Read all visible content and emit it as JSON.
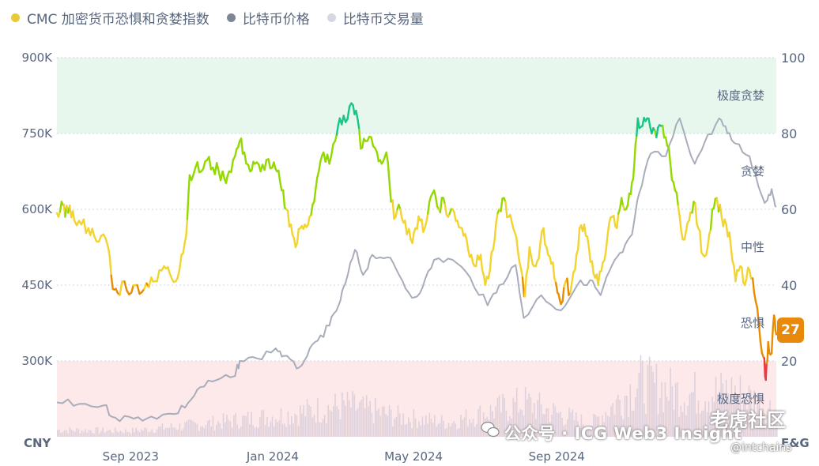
{
  "legend": {
    "fg": {
      "label": "CMC 加密货币恐惧和贪婪指数",
      "color": "#e8c93a"
    },
    "price": {
      "label": "比特币价格",
      "color": "#7e8696"
    },
    "volume": {
      "label": "比特币交易量",
      "color": "#d5d8e3"
    }
  },
  "axis": {
    "left_unit": "CNY",
    "right_unit": "F&G",
    "left_ticks": [
      "900K",
      "750K",
      "600K",
      "450K",
      "300K"
    ],
    "right_ticks": [
      "100",
      "80",
      "60",
      "40",
      "20"
    ],
    "x_ticks": [
      "Sep 2023",
      "Jan 2024",
      "May 2024",
      "Sep 2024"
    ]
  },
  "zones": {
    "extreme_greed": "极度贪婪",
    "greed": "贪婪",
    "neutral": "中性",
    "fear": "恐惧",
    "extreme_fear": "极度恐惧"
  },
  "current_value": "27",
  "watermark": {
    "main": "公众号 · ICG Web3 Insight",
    "site": "老虎社区",
    "sub": "@intchains"
  },
  "colors": {
    "extreme_greed_zone": "#e8f7ee",
    "extreme_fear_zone": "#fde9ea",
    "extreme_greed_line": "#16c784",
    "greed_line": "#93d900",
    "neutral_line": "#f3d42f",
    "fear_line": "#ea8c00",
    "extreme_fear_line": "#ea3943",
    "price_line": "#a8adbb",
    "volume_bars": "#d8cdd8"
  },
  "chart_data": {
    "type": "line",
    "title": "",
    "x_range": [
      "2023-07-01",
      "2025-03-10"
    ],
    "y_left_range": [
      150000,
      900000
    ],
    "y_right_range": [
      0,
      100
    ],
    "series": [
      {
        "name": "CMC 加密货币恐惧和贪婪指数",
        "axis": "right",
        "points": [
          [
            "2023-07-01",
            59
          ],
          [
            "2023-07-05",
            62
          ],
          [
            "2023-07-08",
            58
          ],
          [
            "2023-07-12",
            61
          ],
          [
            "2023-07-16",
            57
          ],
          [
            "2023-07-22",
            56
          ],
          [
            "2023-07-28",
            55
          ],
          [
            "2023-08-02",
            53
          ],
          [
            "2023-08-08",
            53
          ],
          [
            "2023-08-14",
            50
          ],
          [
            "2023-08-18",
            39
          ],
          [
            "2023-08-22",
            38
          ],
          [
            "2023-08-28",
            41
          ],
          [
            "2023-09-03",
            38
          ],
          [
            "2023-09-08",
            40
          ],
          [
            "2023-09-14",
            39
          ],
          [
            "2023-09-20",
            42
          ],
          [
            "2023-09-25",
            41
          ],
          [
            "2023-10-01",
            45
          ],
          [
            "2023-10-06",
            43
          ],
          [
            "2023-10-11",
            41
          ],
          [
            "2023-10-16",
            48
          ],
          [
            "2023-10-20",
            53
          ],
          [
            "2023-10-23",
            69
          ],
          [
            "2023-10-28",
            71
          ],
          [
            "2023-11-02",
            70
          ],
          [
            "2023-11-07",
            73
          ],
          [
            "2023-11-12",
            71
          ],
          [
            "2023-11-17",
            70
          ],
          [
            "2023-11-22",
            68
          ],
          [
            "2023-11-26",
            70
          ],
          [
            "2023-12-01",
            74
          ],
          [
            "2023-12-05",
            78
          ],
          [
            "2023-12-09",
            75
          ],
          [
            "2023-12-14",
            70
          ],
          [
            "2023-12-18",
            72
          ],
          [
            "2023-12-23",
            70
          ],
          [
            "2023-12-28",
            73
          ],
          [
            "2024-01-02",
            71
          ],
          [
            "2024-01-06",
            70
          ],
          [
            "2024-01-10",
            65
          ],
          [
            "2024-01-14",
            60
          ],
          [
            "2024-01-18",
            56
          ],
          [
            "2024-01-22",
            50
          ],
          [
            "2024-01-26",
            55
          ],
          [
            "2024-01-30",
            56
          ],
          [
            "2024-02-03",
            58
          ],
          [
            "2024-02-07",
            62
          ],
          [
            "2024-02-11",
            70
          ],
          [
            "2024-02-15",
            75
          ],
          [
            "2024-02-20",
            72
          ],
          [
            "2024-02-25",
            78
          ],
          [
            "2024-02-29",
            84
          ],
          [
            "2024-03-05",
            83
          ],
          [
            "2024-03-10",
            88
          ],
          [
            "2024-03-14",
            86
          ],
          [
            "2024-03-18",
            76
          ],
          [
            "2024-03-22",
            78
          ],
          [
            "2024-03-27",
            79
          ],
          [
            "2024-04-01",
            75
          ],
          [
            "2024-04-05",
            72
          ],
          [
            "2024-04-09",
            75
          ],
          [
            "2024-04-13",
            62
          ],
          [
            "2024-04-17",
            58
          ],
          [
            "2024-04-21",
            60
          ],
          [
            "2024-04-25",
            57
          ],
          [
            "2024-04-30",
            52
          ],
          [
            "2024-05-04",
            55
          ],
          [
            "2024-05-08",
            57
          ],
          [
            "2024-05-12",
            55
          ],
          [
            "2024-05-16",
            62
          ],
          [
            "2024-05-20",
            65
          ],
          [
            "2024-05-24",
            60
          ],
          [
            "2024-05-28",
            63
          ],
          [
            "2024-06-01",
            58
          ],
          [
            "2024-06-05",
            60
          ],
          [
            "2024-06-09",
            57
          ],
          [
            "2024-06-13",
            55
          ],
          [
            "2024-06-17",
            52
          ],
          [
            "2024-06-21",
            48
          ],
          [
            "2024-06-25",
            45
          ],
          [
            "2024-06-29",
            48
          ],
          [
            "2024-07-03",
            40
          ],
          [
            "2024-07-07",
            44
          ],
          [
            "2024-07-11",
            52
          ],
          [
            "2024-07-15",
            60
          ],
          [
            "2024-07-19",
            63
          ],
          [
            "2024-07-23",
            58
          ],
          [
            "2024-07-27",
            55
          ],
          [
            "2024-07-31",
            49
          ],
          [
            "2024-08-04",
            42
          ],
          [
            "2024-08-06",
            37
          ],
          [
            "2024-08-10",
            50
          ],
          [
            "2024-08-14",
            45
          ],
          [
            "2024-08-18",
            47
          ],
          [
            "2024-08-22",
            55
          ],
          [
            "2024-08-26",
            48
          ],
          [
            "2024-08-30",
            46
          ],
          [
            "2024-09-03",
            38
          ],
          [
            "2024-09-06",
            35
          ],
          [
            "2024-09-10",
            41
          ],
          [
            "2024-09-14",
            38
          ],
          [
            "2024-09-18",
            44
          ],
          [
            "2024-09-22",
            55
          ],
          [
            "2024-09-26",
            56
          ],
          [
            "2024-09-30",
            50
          ],
          [
            "2024-10-04",
            43
          ],
          [
            "2024-10-08",
            40
          ],
          [
            "2024-10-12",
            46
          ],
          [
            "2024-10-16",
            53
          ],
          [
            "2024-10-20",
            58
          ],
          [
            "2024-10-24",
            55
          ],
          [
            "2024-10-28",
            63
          ],
          [
            "2024-11-01",
            60
          ],
          [
            "2024-11-05",
            64
          ],
          [
            "2024-11-08",
            72
          ],
          [
            "2024-11-11",
            84
          ],
          [
            "2024-11-15",
            82
          ],
          [
            "2024-11-19",
            84
          ],
          [
            "2024-11-23",
            80
          ],
          [
            "2024-11-27",
            79
          ],
          [
            "2024-12-01",
            82
          ],
          [
            "2024-12-05",
            79
          ],
          [
            "2024-12-09",
            72
          ],
          [
            "2024-12-13",
            65
          ],
          [
            "2024-12-17",
            58
          ],
          [
            "2024-12-21",
            52
          ],
          [
            "2024-12-25",
            57
          ],
          [
            "2024-12-29",
            62
          ],
          [
            "2025-01-02",
            55
          ],
          [
            "2025-01-06",
            48
          ],
          [
            "2025-01-10",
            50
          ],
          [
            "2025-01-14",
            60
          ],
          [
            "2025-01-18",
            63
          ],
          [
            "2025-01-22",
            58
          ],
          [
            "2025-01-26",
            56
          ],
          [
            "2025-01-30",
            50
          ],
          [
            "2025-02-03",
            41
          ],
          [
            "2025-02-07",
            45
          ],
          [
            "2025-02-11",
            40
          ],
          [
            "2025-02-15",
            44
          ],
          [
            "2025-02-19",
            38
          ],
          [
            "2025-02-23",
            30
          ],
          [
            "2025-02-27",
            21
          ],
          [
            "2025-03-01",
            15
          ],
          [
            "2025-03-03",
            25
          ],
          [
            "2025-03-06",
            22
          ],
          [
            "2025-03-08",
            32
          ],
          [
            "2025-03-10",
            27
          ]
        ]
      },
      {
        "name": "比特币价格",
        "axis": "left",
        "points": [
          [
            "2023-07-01",
            218000
          ],
          [
            "2023-07-20",
            215000
          ],
          [
            "2023-08-10",
            212000
          ],
          [
            "2023-08-20",
            188000
          ],
          [
            "2023-09-05",
            186000
          ],
          [
            "2023-09-20",
            190000
          ],
          [
            "2023-10-10",
            195000
          ],
          [
            "2023-10-22",
            218000
          ],
          [
            "2023-11-01",
            248000
          ],
          [
            "2023-11-15",
            262000
          ],
          [
            "2023-12-01",
            270000
          ],
          [
            "2023-12-05",
            300000
          ],
          [
            "2023-12-20",
            305000
          ],
          [
            "2024-01-05",
            325000
          ],
          [
            "2024-01-12",
            310000
          ],
          [
            "2024-01-23",
            285000
          ],
          [
            "2024-02-01",
            310000
          ],
          [
            "2024-02-10",
            340000
          ],
          [
            "2024-02-20",
            370000
          ],
          [
            "2024-02-28",
            410000
          ],
          [
            "2024-03-05",
            455000
          ],
          [
            "2024-03-13",
            520000
          ],
          [
            "2024-03-20",
            470000
          ],
          [
            "2024-03-28",
            510000
          ],
          [
            "2024-04-10",
            505000
          ],
          [
            "2024-04-20",
            470000
          ],
          [
            "2024-05-01",
            425000
          ],
          [
            "2024-05-10",
            445000
          ],
          [
            "2024-05-20",
            500000
          ],
          [
            "2024-06-05",
            500000
          ],
          [
            "2024-06-20",
            465000
          ],
          [
            "2024-07-05",
            410000
          ],
          [
            "2024-07-15",
            450000
          ],
          [
            "2024-07-29",
            490000
          ],
          [
            "2024-08-05",
            385000
          ],
          [
            "2024-08-20",
            430000
          ],
          [
            "2024-09-06",
            400000
          ],
          [
            "2024-09-20",
            450000
          ],
          [
            "2024-10-01",
            460000
          ],
          [
            "2024-10-10",
            430000
          ],
          [
            "2024-10-20",
            490000
          ],
          [
            "2024-10-29",
            515000
          ],
          [
            "2024-11-06",
            550000
          ],
          [
            "2024-11-12",
            630000
          ],
          [
            "2024-11-22",
            710000
          ],
          [
            "2024-12-05",
            705000
          ],
          [
            "2024-12-17",
            780000
          ],
          [
            "2024-12-30",
            690000
          ],
          [
            "2025-01-07",
            730000
          ],
          [
            "2025-01-20",
            780000
          ],
          [
            "2025-01-27",
            750000
          ],
          [
            "2025-02-03",
            730000
          ],
          [
            "2025-02-15",
            705000
          ],
          [
            "2025-02-25",
            630000
          ],
          [
            "2025-03-01",
            615000
          ],
          [
            "2025-03-06",
            640000
          ],
          [
            "2025-03-10",
            605000
          ]
        ]
      },
      {
        "name": "比特币交易量",
        "axis": "volume",
        "relative_values_note": "bars along the bottom, relative heights",
        "points": [
          [
            "2023-07-01",
            0.12
          ],
          [
            "2023-09-01",
            0.1
          ],
          [
            "2023-11-01",
            0.22
          ],
          [
            "2024-01-10",
            0.38
          ],
          [
            "2024-03-05",
            0.55
          ],
          [
            "2024-04-20",
            0.35
          ],
          [
            "2024-06-01",
            0.25
          ],
          [
            "2024-08-05",
            0.6
          ],
          [
            "2024-10-01",
            0.22
          ],
          [
            "2024-11-12",
            0.95
          ],
          [
            "2024-12-20",
            0.75
          ],
          [
            "2025-02-03",
            0.8
          ],
          [
            "2025-03-10",
            0.45
          ]
        ]
      }
    ],
    "zones": [
      {
        "label": "极度贪婪",
        "from": 80,
        "to": 100
      },
      {
        "label": "贪婪",
        "from": 60,
        "to": 80
      },
      {
        "label": "中性",
        "from": 40,
        "to": 60
      },
      {
        "label": "恐惧",
        "from": 20,
        "to": 40
      },
      {
        "label": "极度恐惧",
        "from": 0,
        "to": 20
      }
    ],
    "grid": true,
    "legend_position": "top-left"
  }
}
